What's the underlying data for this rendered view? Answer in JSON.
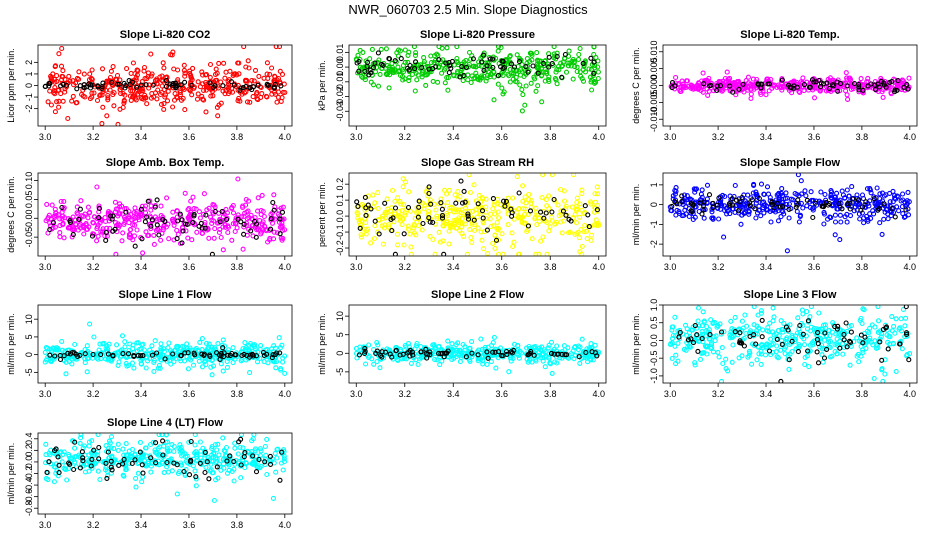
{
  "figure_title": "NWR_060703  2.5 Min. Slope Diagnostics",
  "colors": {
    "reference_series": "#000000"
  },
  "chart_data": [
    {
      "type": "scatter",
      "title": "Slope Li-820 CO2",
      "ylabel": "Licor ppm per min.",
      "xlim": [
        2.97,
        4.03
      ],
      "ylim": [
        -3.5,
        3.5
      ],
      "xticks": [
        3.0,
        3.2,
        3.4,
        3.6,
        3.8,
        4.0
      ],
      "xtick_labels": [
        "3.0",
        "3.2",
        "3.4",
        "3.6",
        "3.8",
        "4.0"
      ],
      "yticks": [
        -2,
        -1,
        0,
        1,
        2
      ],
      "ytick_labels": [
        "-2",
        "-1",
        "0",
        "1",
        "2"
      ],
      "series": [
        {
          "name": "slope",
          "color": "#ff0000",
          "center": 0.0,
          "spread": 0.9,
          "count": 420,
          "seed": 11
        },
        {
          "name": "reference",
          "color": "#000000",
          "center": 0.0,
          "spread": 0.15,
          "count": 70,
          "seed": 12
        }
      ]
    },
    {
      "type": "scatter",
      "title": "Slope Li-820 Pressure",
      "ylabel": "kPa per min.",
      "xlim": [
        2.97,
        4.03
      ],
      "ylim": [
        -0.04,
        0.015
      ],
      "xticks": [
        3.0,
        3.2,
        3.4,
        3.6,
        3.8,
        4.0
      ],
      "xtick_labels": [
        "3.0",
        "3.2",
        "3.4",
        "3.6",
        "3.8",
        "4.0"
      ],
      "yticks": [
        -0.03,
        -0.02,
        -0.01,
        0.0,
        0.01
      ],
      "ytick_labels": [
        "-0.03",
        "-0.02",
        "-0.01",
        "0.00",
        "0.01"
      ],
      "series": [
        {
          "name": "slope",
          "color": "#00cc00",
          "center": 0.0,
          "spread": 0.006,
          "count": 420,
          "seed": 21
        },
        {
          "name": "reference",
          "color": "#000000",
          "center": 0.0,
          "spread": 0.003,
          "count": 70,
          "seed": 22
        }
      ]
    },
    {
      "type": "scatter",
      "title": "Slope Li-820 Temp.",
      "ylabel": "degrees C per min.",
      "xlim": [
        2.97,
        4.03
      ],
      "ylim": [
        -0.012,
        0.012
      ],
      "xticks": [
        3.0,
        3.2,
        3.4,
        3.6,
        3.8,
        4.0
      ],
      "xtick_labels": [
        "3.0",
        "3.2",
        "3.4",
        "3.6",
        "3.8",
        "4.0"
      ],
      "yticks": [
        -0.01,
        -0.005,
        0.0,
        0.005,
        0.01
      ],
      "ytick_labels": [
        "-0.010",
        "-0.005",
        "0.000",
        "0.005",
        "0.010"
      ],
      "series": [
        {
          "name": "slope",
          "color": "#ff00ff",
          "center": 0.0,
          "spread": 0.001,
          "count": 420,
          "seed": 31
        },
        {
          "name": "reference",
          "color": "#000000",
          "center": 0.0,
          "spread": 0.0008,
          "count": 70,
          "seed": 32
        }
      ]
    },
    {
      "type": "scatter",
      "title": "Slope Amb. Box Temp.",
      "ylabel": "degrees C per min.",
      "xlim": [
        2.97,
        4.03
      ],
      "ylim": [
        -0.1,
        0.12
      ],
      "xticks": [
        3.0,
        3.2,
        3.4,
        3.6,
        3.8,
        4.0
      ],
      "xtick_labels": [
        "3.0",
        "3.2",
        "3.4",
        "3.6",
        "3.8",
        "4.0"
      ],
      "yticks": [
        -0.05,
        0.0,
        0.05,
        0.1
      ],
      "ytick_labels": [
        "-0.05",
        "0.00",
        "0.05",
        "0.10"
      ],
      "series": [
        {
          "name": "slope",
          "color": "#ff00ff",
          "center": -0.01,
          "spread": 0.025,
          "count": 420,
          "seed": 41
        },
        {
          "name": "reference",
          "color": "#000000",
          "center": -0.01,
          "spread": 0.025,
          "count": 70,
          "seed": 42
        }
      ]
    },
    {
      "type": "scatter",
      "title": "Slope Gas Stream RH",
      "ylabel": "percent per min.",
      "xlim": [
        2.97,
        4.03
      ],
      "ylim": [
        -0.25,
        0.27
      ],
      "xticks": [
        3.0,
        3.2,
        3.4,
        3.6,
        3.8,
        4.0
      ],
      "xtick_labels": [
        "3.0",
        "3.2",
        "3.4",
        "3.6",
        "3.8",
        "4.0"
      ],
      "yticks": [
        -0.2,
        -0.1,
        0.0,
        0.1,
        0.2
      ],
      "ytick_labels": [
        "-0.2",
        "-0.1",
        "0.0",
        "0.1",
        "0.2"
      ],
      "series": [
        {
          "name": "slope",
          "color": "#ffff00",
          "center": 0.0,
          "spread": 0.09,
          "count": 420,
          "seed": 51
        },
        {
          "name": "reference",
          "color": "#000000",
          "center": 0.0,
          "spread": 0.08,
          "count": 70,
          "seed": 52
        }
      ]
    },
    {
      "type": "scatter",
      "title": "Slope Sample Flow",
      "ylabel": "ml/min per min.",
      "xlim": [
        2.97,
        4.03
      ],
      "ylim": [
        -2.6,
        1.6
      ],
      "xticks": [
        3.0,
        3.2,
        3.4,
        3.6,
        3.8,
        4.0
      ],
      "xtick_labels": [
        "3.0",
        "3.2",
        "3.4",
        "3.6",
        "3.8",
        "4.0"
      ],
      "yticks": [
        -2,
        -1,
        0,
        1
      ],
      "ytick_labels": [
        "-2",
        "-1",
        "0",
        "1"
      ],
      "series": [
        {
          "name": "slope",
          "color": "#0000ff",
          "center": 0.0,
          "spread": 0.4,
          "count": 420,
          "seed": 61
        },
        {
          "name": "reference",
          "color": "#000000",
          "center": 0.0,
          "spread": 0.25,
          "count": 70,
          "seed": 62
        }
      ]
    },
    {
      "type": "scatter",
      "title": "Slope Line 1 Flow",
      "ylabel": "ml/min per min.",
      "xlim": [
        2.97,
        4.03
      ],
      "ylim": [
        -8,
        14
      ],
      "xticks": [
        3.0,
        3.2,
        3.4,
        3.6,
        3.8,
        4.0
      ],
      "xtick_labels": [
        "3.0",
        "3.2",
        "3.4",
        "3.6",
        "3.8",
        "4.0"
      ],
      "yticks": [
        -5,
        0,
        5,
        10
      ],
      "ytick_labels": [
        "-5",
        "0",
        "5",
        "10"
      ],
      "series": [
        {
          "name": "slope",
          "color": "#00ffff",
          "center": 0.0,
          "spread": 1.5,
          "count": 420,
          "seed": 71
        },
        {
          "name": "reference",
          "color": "#000000",
          "center": 0.0,
          "spread": 0.3,
          "count": 70,
          "seed": 72
        }
      ]
    },
    {
      "type": "scatter",
      "title": "Slope Line 2 Flow",
      "ylabel": "ml/min per min.",
      "xlim": [
        2.97,
        4.03
      ],
      "ylim": [
        -8,
        13
      ],
      "xticks": [
        3.0,
        3.2,
        3.4,
        3.6,
        3.8,
        4.0
      ],
      "xtick_labels": [
        "3.0",
        "3.2",
        "3.4",
        "3.6",
        "3.8",
        "4.0"
      ],
      "yticks": [
        -5,
        0,
        5,
        10
      ],
      "ytick_labels": [
        "-5",
        "0",
        "5",
        "10"
      ],
      "series": [
        {
          "name": "slope",
          "color": "#00ffff",
          "center": 0.0,
          "spread": 1.2,
          "count": 420,
          "seed": 81
        },
        {
          "name": "reference",
          "color": "#000000",
          "center": 0.0,
          "spread": 0.5,
          "count": 70,
          "seed": 82
        }
      ]
    },
    {
      "type": "scatter",
      "title": "Slope Line 3 Flow",
      "ylabel": "ml/min per min.",
      "xlim": [
        2.97,
        4.03
      ],
      "ylim": [
        -1.2,
        1.0
      ],
      "xticks": [
        3.0,
        3.2,
        3.4,
        3.6,
        3.8,
        4.0
      ],
      "xtick_labels": [
        "3.0",
        "3.2",
        "3.4",
        "3.6",
        "3.8",
        "4.0"
      ],
      "yticks": [
        -1.0,
        -0.5,
        0.0,
        0.5,
        1.0
      ],
      "ytick_labels": [
        "-1.0",
        "-0.5",
        "0.0",
        "0.5",
        "1.0"
      ],
      "series": [
        {
          "name": "slope",
          "color": "#00ffff",
          "center": 0.05,
          "spread": 0.35,
          "count": 420,
          "seed": 91
        },
        {
          "name": "reference",
          "color": "#000000",
          "center": 0.0,
          "spread": 0.3,
          "count": 70,
          "seed": 92
        }
      ]
    },
    {
      "type": "scatter",
      "title": "Slope Line 4 (LT) Flow",
      "ylabel": "ml/min per min.",
      "xlim": [
        2.97,
        4.03
      ],
      "ylim": [
        -0.9,
        0.5
      ],
      "xticks": [
        3.0,
        3.2,
        3.4,
        3.6,
        3.8,
        4.0
      ],
      "xtick_labels": [
        "3.0",
        "3.2",
        "3.4",
        "3.6",
        "3.8",
        "4.0"
      ],
      "yticks": [
        -0.8,
        -0.6,
        -0.4,
        -0.2,
        0.0,
        0.2,
        0.4
      ],
      "ytick_labels": [
        "-0.8",
        "-0.6",
        "-0.4",
        "-0.2",
        "0.0",
        "0.2",
        "0.4"
      ],
      "series": [
        {
          "name": "slope",
          "color": "#00ffff",
          "center": 0.05,
          "spread": 0.15,
          "count": 420,
          "seed": 101
        },
        {
          "name": "reference",
          "color": "#000000",
          "center": 0.0,
          "spread": 0.15,
          "count": 70,
          "seed": 102
        }
      ]
    }
  ]
}
